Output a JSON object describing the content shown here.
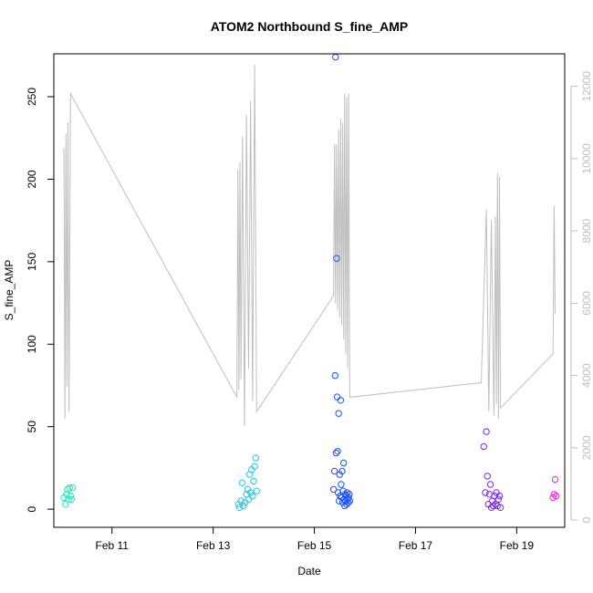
{
  "chart_data": {
    "type": "scatter",
    "title": "ATOM2 Northbound S_fine_AMP",
    "xlabel": "Date",
    "ylabel": "S_fine_AMP",
    "xlim": [
      9.85,
      19.95
    ],
    "ylim": [
      -11,
      276
    ],
    "y2lim": [
      -200,
      12900
    ],
    "x_ticks": [
      {
        "value": 11,
        "label": "Feb 11"
      },
      {
        "value": 13,
        "label": "Feb 13"
      },
      {
        "value": 15,
        "label": "Feb 15"
      },
      {
        "value": 17,
        "label": "Feb 17"
      },
      {
        "value": 19,
        "label": "Feb 19"
      }
    ],
    "y_ticks": [
      {
        "value": 0,
        "label": "0"
      },
      {
        "value": 50,
        "label": "50"
      },
      {
        "value": 100,
        "label": "100"
      },
      {
        "value": 150,
        "label": "150"
      },
      {
        "value": 200,
        "label": "200"
      },
      {
        "value": 250,
        "label": "250"
      }
    ],
    "y2_ticks": [
      {
        "value": 0,
        "label": "0"
      },
      {
        "value": 2000,
        "label": "2000"
      },
      {
        "value": 4000,
        "label": "4000"
      },
      {
        "value": 6000,
        "label": "6000"
      },
      {
        "value": 8000,
        "label": "8000"
      },
      {
        "value": 10000,
        "label": "10000"
      },
      {
        "value": 12000,
        "label": "12000"
      }
    ],
    "colors": {
      "line": "#bebebe",
      "frame": "#000000",
      "right_axis": "#bebebe"
    },
    "series": [
      {
        "kind": "points",
        "points": [
          {
            "x": 10.05,
            "y": 7,
            "color": "#1de9b6"
          },
          {
            "x": 10.08,
            "y": 3,
            "color": "#1de9b6"
          },
          {
            "x": 10.1,
            "y": 9,
            "color": "#1de9b6"
          },
          {
            "x": 10.12,
            "y": 12,
            "color": "#1de9b6"
          },
          {
            "x": 10.14,
            "y": 6,
            "color": "#1de9b6"
          },
          {
            "x": 10.16,
            "y": 13,
            "color": "#1de9b6"
          },
          {
            "x": 10.18,
            "y": 8,
            "color": "#1de9b6"
          },
          {
            "x": 10.2,
            "y": 6,
            "color": "#1de9b6"
          },
          {
            "x": 10.22,
            "y": 13,
            "color": "#1de9b6"
          },
          {
            "x": 13.5,
            "y": 3,
            "color": "#1ec8e8"
          },
          {
            "x": 13.52,
            "y": 1,
            "color": "#1ec8e8"
          },
          {
            "x": 13.55,
            "y": 5,
            "color": "#1ec8e8"
          },
          {
            "x": 13.57,
            "y": 16,
            "color": "#1ec8e8"
          },
          {
            "x": 13.6,
            "y": 2,
            "color": "#1ec8e8"
          },
          {
            "x": 13.63,
            "y": 4,
            "color": "#1ec8e8"
          },
          {
            "x": 13.66,
            "y": 9,
            "color": "#1ec8e8"
          },
          {
            "x": 13.68,
            "y": 12,
            "color": "#1ec8e8"
          },
          {
            "x": 13.7,
            "y": 6,
            "color": "#1ec8e8"
          },
          {
            "x": 13.72,
            "y": 21,
            "color": "#1ec8e8"
          },
          {
            "x": 13.74,
            "y": 10,
            "color": "#1ec8e8"
          },
          {
            "x": 13.76,
            "y": 24,
            "color": "#1ec8e8"
          },
          {
            "x": 13.78,
            "y": 8,
            "color": "#1ec8e8"
          },
          {
            "x": 13.8,
            "y": 17,
            "color": "#1ec8e8"
          },
          {
            "x": 13.82,
            "y": 26,
            "color": "#1ec8e8"
          },
          {
            "x": 13.84,
            "y": 31,
            "color": "#1ec8e8"
          },
          {
            "x": 13.86,
            "y": 11,
            "color": "#1ec8e8"
          },
          {
            "x": 15.38,
            "y": 12,
            "color": "#1a50ff"
          },
          {
            "x": 15.4,
            "y": 23,
            "color": "#1a50ff"
          },
          {
            "x": 15.41,
            "y": 81,
            "color": "#1a50ff"
          },
          {
            "x": 15.42,
            "y": 274,
            "color": "#1a50ff"
          },
          {
            "x": 15.43,
            "y": 34,
            "color": "#1a50ff"
          },
          {
            "x": 15.44,
            "y": 152,
            "color": "#1a50ff"
          },
          {
            "x": 15.45,
            "y": 68,
            "color": "#1a50ff"
          },
          {
            "x": 15.46,
            "y": 35,
            "color": "#1a50ff"
          },
          {
            "x": 15.47,
            "y": 10,
            "color": "#1a50ff"
          },
          {
            "x": 15.48,
            "y": 58,
            "color": "#1a50ff"
          },
          {
            "x": 15.49,
            "y": 5,
            "color": "#1a50ff"
          },
          {
            "x": 15.5,
            "y": 21,
            "color": "#1a50ff"
          },
          {
            "x": 15.51,
            "y": 8,
            "color": "#1a50ff"
          },
          {
            "x": 15.52,
            "y": 66,
            "color": "#1a50ff"
          },
          {
            "x": 15.53,
            "y": 15,
            "color": "#1a50ff"
          },
          {
            "x": 15.54,
            "y": 7,
            "color": "#1a50ff"
          },
          {
            "x": 15.55,
            "y": 23,
            "color": "#1a50ff"
          },
          {
            "x": 15.56,
            "y": 4,
            "color": "#1a50ff"
          },
          {
            "x": 15.57,
            "y": 11,
            "color": "#1a50ff"
          },
          {
            "x": 15.58,
            "y": 28,
            "color": "#1a50ff"
          },
          {
            "x": 15.59,
            "y": 6,
            "color": "#1a50ff"
          },
          {
            "x": 15.6,
            "y": 2,
            "color": "#1a50ff"
          },
          {
            "x": 15.61,
            "y": 9,
            "color": "#1a50ff"
          },
          {
            "x": 15.62,
            "y": 5,
            "color": "#1a50ff"
          },
          {
            "x": 15.63,
            "y": 8,
            "color": "#1a50ff"
          },
          {
            "x": 15.64,
            "y": 3,
            "color": "#1a50ff"
          },
          {
            "x": 15.65,
            "y": 10,
            "color": "#1a50ff"
          },
          {
            "x": 15.66,
            "y": 6,
            "color": "#1a50ff"
          },
          {
            "x": 15.67,
            "y": 4,
            "color": "#1a50ff"
          },
          {
            "x": 15.68,
            "y": 7,
            "color": "#1a50ff"
          },
          {
            "x": 15.69,
            "y": 9,
            "color": "#1a50ff"
          },
          {
            "x": 15.7,
            "y": 5,
            "color": "#1a50ff"
          },
          {
            "x": 18.35,
            "y": 38,
            "color": "#7a28f0"
          },
          {
            "x": 18.38,
            "y": 10,
            "color": "#7a28f0"
          },
          {
            "x": 18.4,
            "y": 47,
            "color": "#7a28f0"
          },
          {
            "x": 18.42,
            "y": 20,
            "color": "#7a28f0"
          },
          {
            "x": 18.44,
            "y": 3,
            "color": "#7a28f0"
          },
          {
            "x": 18.46,
            "y": 9,
            "color": "#7a28f0"
          },
          {
            "x": 18.48,
            "y": 15,
            "color": "#7a28f0"
          },
          {
            "x": 18.5,
            "y": 1,
            "color": "#7a28f0"
          },
          {
            "x": 18.52,
            "y": 5,
            "color": "#7a28f0"
          },
          {
            "x": 18.54,
            "y": 2,
            "color": "#7a28f0"
          },
          {
            "x": 18.56,
            "y": 8,
            "color": "#7a28f0"
          },
          {
            "x": 18.58,
            "y": 3,
            "color": "#7a28f0"
          },
          {
            "x": 18.6,
            "y": 10,
            "color": "#7a28f0"
          },
          {
            "x": 18.62,
            "y": 2,
            "color": "#7a28f0"
          },
          {
            "x": 18.64,
            "y": 6,
            "color": "#7a28f0"
          },
          {
            "x": 18.66,
            "y": 8,
            "color": "#7a28f0"
          },
          {
            "x": 18.68,
            "y": 1,
            "color": "#7a28f0"
          },
          {
            "x": 19.72,
            "y": 7,
            "color": "#e02ae8"
          },
          {
            "x": 19.74,
            "y": 9,
            "color": "#e02ae8"
          },
          {
            "x": 19.76,
            "y": 18,
            "color": "#e02ae8"
          },
          {
            "x": 19.78,
            "y": 8,
            "color": "#e02ae8"
          }
        ]
      },
      {
        "kind": "line",
        "axis": "right",
        "points": [
          [
            10.05,
            10300
          ],
          [
            10.07,
            2800
          ],
          [
            10.09,
            10700
          ],
          [
            10.11,
            3700
          ],
          [
            10.13,
            11000
          ],
          [
            10.15,
            3000
          ],
          [
            10.18,
            11800
          ],
          [
            13.47,
            3400
          ],
          [
            13.49,
            9700
          ],
          [
            13.51,
            3600
          ],
          [
            13.53,
            9900
          ],
          [
            13.55,
            3900
          ],
          [
            13.58,
            10600
          ],
          [
            13.62,
            2600
          ],
          [
            13.66,
            11200
          ],
          [
            13.7,
            4200
          ],
          [
            13.74,
            11600
          ],
          [
            13.78,
            3300
          ],
          [
            13.82,
            12600
          ],
          [
            13.86,
            3000
          ],
          [
            15.38,
            6200
          ],
          [
            15.4,
            10400
          ],
          [
            15.42,
            6000
          ],
          [
            15.44,
            10400
          ],
          [
            15.46,
            5800
          ],
          [
            15.48,
            10800
          ],
          [
            15.5,
            5600
          ],
          [
            15.52,
            11100
          ],
          [
            15.54,
            5400
          ],
          [
            15.56,
            11000
          ],
          [
            15.58,
            5000
          ],
          [
            15.6,
            11800
          ],
          [
            15.62,
            4600
          ],
          [
            15.64,
            11700
          ],
          [
            15.66,
            4200
          ],
          [
            15.68,
            11800
          ],
          [
            15.7,
            3400
          ],
          [
            18.3,
            3800
          ],
          [
            18.4,
            8600
          ],
          [
            18.45,
            3000
          ],
          [
            18.5,
            8300
          ],
          [
            18.55,
            2900
          ],
          [
            18.58,
            8400
          ],
          [
            18.6,
            3200
          ],
          [
            18.62,
            9600
          ],
          [
            18.64,
            2800
          ],
          [
            18.66,
            9500
          ],
          [
            18.68,
            3100
          ],
          [
            19.72,
            4600
          ],
          [
            19.74,
            8700
          ],
          [
            19.76,
            5700
          ]
        ]
      }
    ]
  }
}
